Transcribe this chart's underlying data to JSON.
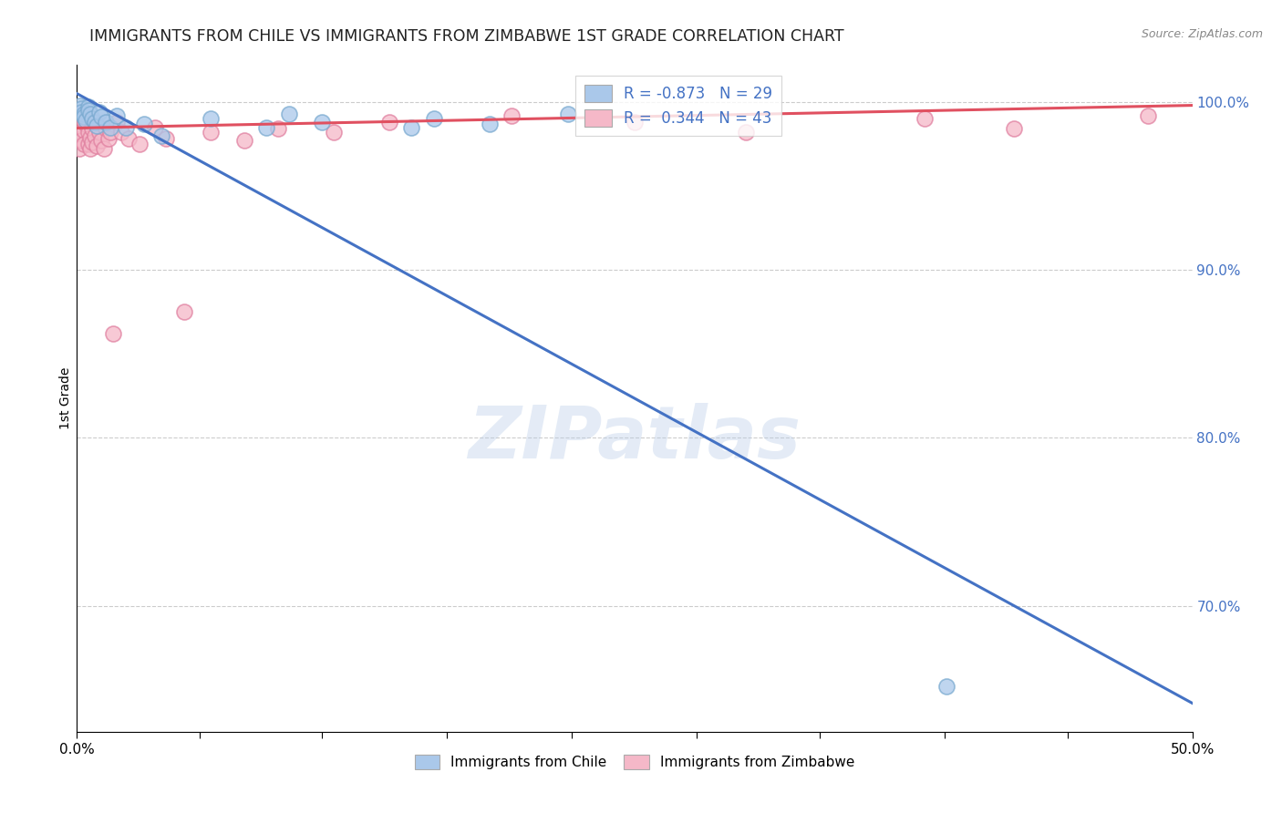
{
  "title": "IMMIGRANTS FROM CHILE VS IMMIGRANTS FROM ZIMBABWE 1ST GRADE CORRELATION CHART",
  "source": "Source: ZipAtlas.com",
  "ylabel": "1st Grade",
  "xlim": [
    0.0,
    0.5
  ],
  "ylim": [
    0.625,
    1.022
  ],
  "xtick_labels": [
    "0.0%",
    "",
    "",
    "",
    "",
    "",
    "",
    "",
    "",
    "50.0%"
  ],
  "xtick_vals": [
    0.0,
    0.055,
    0.11,
    0.166,
    0.222,
    0.278,
    0.333,
    0.389,
    0.444,
    0.5
  ],
  "ytick_right_labels": [
    "100.0%",
    "90.0%",
    "80.0%",
    "70.0%"
  ],
  "ytick_right_vals": [
    1.0,
    0.9,
    0.8,
    0.7
  ],
  "grid_color": "#cccccc",
  "background_color": "#ffffff",
  "chile_color": "#aac8ea",
  "chile_edge_color": "#7aaad0",
  "zimbabwe_color": "#f5b8c8",
  "zimbabwe_edge_color": "#e080a0",
  "chile_R": -0.873,
  "chile_N": 29,
  "zimbabwe_R": 0.344,
  "zimbabwe_N": 43,
  "chile_line_color": "#4472c4",
  "zimbabwe_line_color": "#e05060",
  "watermark_text": "ZIPatlas",
  "chile_line_x": [
    0.0,
    0.5
  ],
  "chile_line_y": [
    1.005,
    0.642
  ],
  "zimbabwe_line_x": [
    0.0,
    0.5
  ],
  "zimbabwe_line_y": [
    0.9845,
    0.998
  ],
  "chile_scatter_x": [
    0.001,
    0.002,
    0.002,
    0.003,
    0.003,
    0.004,
    0.005,
    0.005,
    0.006,
    0.007,
    0.008,
    0.009,
    0.01,
    0.011,
    0.013,
    0.015,
    0.018,
    0.022,
    0.03,
    0.038,
    0.06,
    0.085,
    0.095,
    0.11,
    0.15,
    0.16,
    0.185,
    0.22,
    0.39
  ],
  "chile_scatter_y": [
    0.998,
    0.996,
    0.994,
    0.993,
    0.991,
    0.989,
    0.997,
    0.995,
    0.993,
    0.99,
    0.988,
    0.986,
    0.994,
    0.991,
    0.988,
    0.985,
    0.992,
    0.985,
    0.987,
    0.98,
    0.99,
    0.985,
    0.993,
    0.988,
    0.985,
    0.99,
    0.987,
    0.993,
    0.652
  ],
  "zimbabwe_scatter_x": [
    0.001,
    0.001,
    0.002,
    0.002,
    0.003,
    0.003,
    0.003,
    0.004,
    0.004,
    0.005,
    0.005,
    0.006,
    0.006,
    0.007,
    0.007,
    0.008,
    0.008,
    0.009,
    0.01,
    0.011,
    0.012,
    0.013,
    0.014,
    0.015,
    0.016,
    0.018,
    0.02,
    0.023,
    0.028,
    0.035,
    0.04,
    0.048,
    0.06,
    0.075,
    0.09,
    0.115,
    0.14,
    0.195,
    0.25,
    0.3,
    0.38,
    0.42,
    0.48
  ],
  "zimbabwe_scatter_y": [
    0.978,
    0.972,
    0.982,
    0.977,
    0.988,
    0.983,
    0.975,
    0.991,
    0.987,
    0.982,
    0.975,
    0.979,
    0.972,
    0.984,
    0.976,
    0.988,
    0.98,
    0.974,
    0.982,
    0.977,
    0.972,
    0.984,
    0.978,
    0.982,
    0.862,
    0.988,
    0.982,
    0.978,
    0.975,
    0.985,
    0.978,
    0.875,
    0.982,
    0.977,
    0.984,
    0.982,
    0.988,
    0.992,
    0.988,
    0.982,
    0.99,
    0.984,
    0.992
  ]
}
